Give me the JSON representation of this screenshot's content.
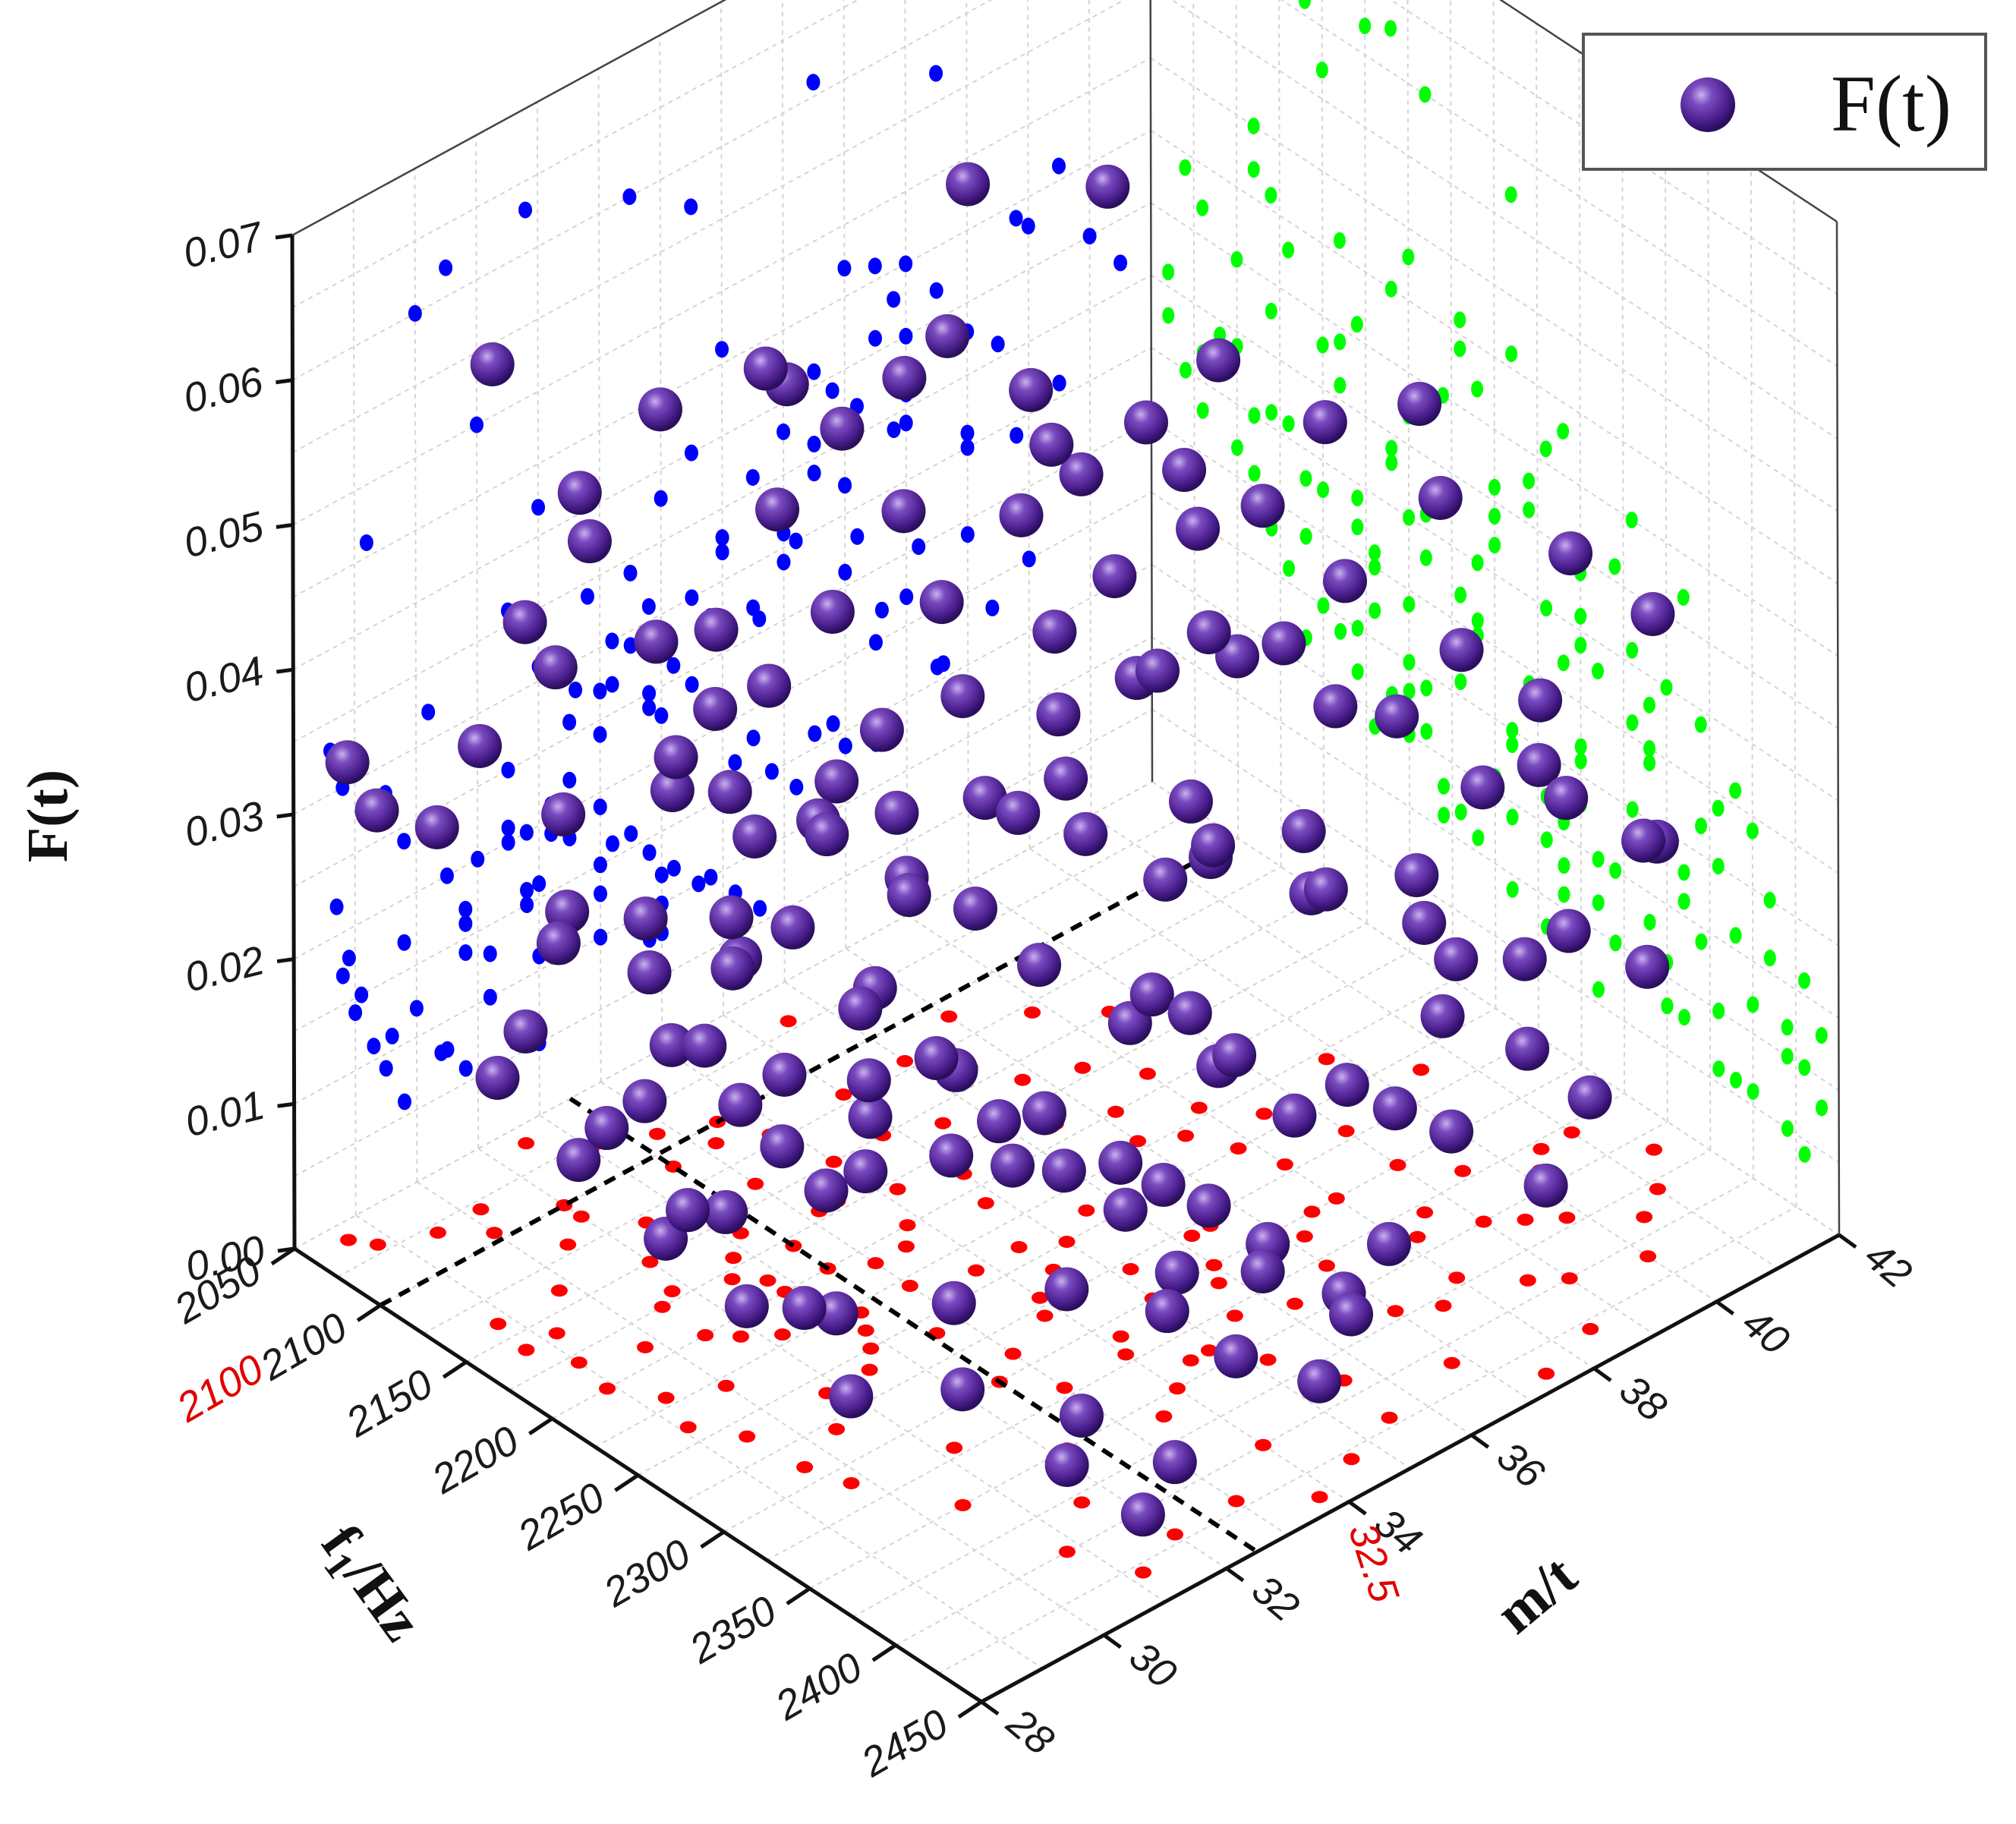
{
  "chart_data": {
    "type": "scatter",
    "subtype": "3d-scatter-with-wall-projections",
    "legend": {
      "position": "top-right",
      "entries": [
        {
          "label": "F(t)",
          "marker": "sphere",
          "color": "#5b2a9a"
        }
      ]
    },
    "axes": {
      "x": {
        "label_main": "f",
        "label_sub": "1",
        "label_unit": "/Hz",
        "range": [
          2050,
          2450
        ],
        "ticks": [
          "2050",
          "2100",
          "2150",
          "2200",
          "2250",
          "2300",
          "2350",
          "2400",
          "2450"
        ],
        "highlight": {
          "value": "2100",
          "color": "#e00000"
        }
      },
      "y": {
        "label": "m/t",
        "range": [
          28,
          42
        ],
        "ticks": [
          "28",
          "30",
          "32",
          "34",
          "36",
          "38",
          "40",
          "42"
        ],
        "highlight": {
          "value": "32.5",
          "color": "#e00000"
        }
      },
      "z": {
        "label": "F(t)",
        "range": [
          0,
          0.07
        ],
        "ticks": [
          "0.00",
          "0.01",
          "0.02",
          "0.03",
          "0.04",
          "0.05",
          "0.06",
          "0.07"
        ]
      }
    },
    "grid": true,
    "guides": [
      {
        "f1": 2100,
        "m": 32.5,
        "style": "dashed",
        "color": "#000000"
      }
    ],
    "projections": {
      "xz_wall": {
        "color": "#0000ff"
      },
      "yz_wall": {
        "color": "#00ff00"
      },
      "xy_floor": {
        "color": "#ff0000"
      }
    },
    "series": [
      {
        "name": "F(t)",
        "color": "#5b2a9a",
        "points": [
          [
            2095,
            30.0,
            0.06
          ],
          [
            2110,
            31.0,
            0.05
          ],
          [
            2160,
            29.2,
            0.046
          ],
          [
            2175,
            30.5,
            0.062
          ],
          [
            2190,
            31.8,
            0.063
          ],
          [
            2210,
            33.5,
            0.06
          ],
          [
            2260,
            34.5,
            0.057
          ],
          [
            2140,
            36.5,
            0.061
          ],
          [
            2150,
            38.5,
            0.057
          ],
          [
            2200,
            38.9,
            0.048
          ],
          [
            2230,
            37.5,
            0.046
          ],
          [
            2280,
            36.5,
            0.041
          ],
          [
            2120,
            35.0,
            0.046
          ],
          [
            2080,
            32.0,
            0.042
          ],
          [
            2100,
            33.5,
            0.034
          ],
          [
            2150,
            34.0,
            0.038
          ],
          [
            2250,
            35.0,
            0.032
          ],
          [
            2300,
            36.0,
            0.029
          ],
          [
            2340,
            34.5,
            0.024
          ],
          [
            2200,
            32.5,
            0.03
          ],
          [
            2230,
            33.0,
            0.027
          ],
          [
            2180,
            31.5,
            0.025
          ],
          [
            2260,
            31.5,
            0.02
          ],
          [
            2300,
            32.5,
            0.018
          ],
          [
            2360,
            33.5,
            0.016
          ],
          [
            2400,
            34.0,
            0.012
          ],
          [
            2420,
            33.0,
            0.01
          ],
          [
            2150,
            31.0,
            0.02
          ],
          [
            2120,
            30.5,
            0.023
          ],
          [
            2080,
            29.5,
            0.028
          ],
          [
            2060,
            28.6,
            0.033
          ],
          [
            2070,
            28.8,
            0.03
          ],
          [
            2140,
            29.8,
            0.024
          ],
          [
            2200,
            30.5,
            0.02
          ],
          [
            2260,
            30.8,
            0.014
          ],
          [
            2320,
            31.2,
            0.01
          ],
          [
            2380,
            31.6,
            0.006
          ],
          [
            2420,
            32.0,
            0.005
          ],
          [
            2110,
            32.5,
            0.026
          ],
          [
            2170,
            33.5,
            0.029
          ],
          [
            2240,
            34.5,
            0.03
          ],
          [
            2290,
            35.5,
            0.027
          ],
          [
            2330,
            37.0,
            0.026
          ],
          [
            2370,
            38.0,
            0.022
          ],
          [
            2250,
            36.5,
            0.036
          ],
          [
            2300,
            38.0,
            0.034
          ],
          [
            2350,
            39.0,
            0.03
          ],
          [
            2330,
            40.5,
            0.031
          ],
          [
            2370,
            39.8,
            0.029
          ],
          [
            2390,
            40.5,
            0.026
          ],
          [
            2400,
            39.0,
            0.024
          ],
          [
            2220,
            38.0,
            0.04
          ],
          [
            2270,
            39.0,
            0.038
          ],
          [
            2320,
            39.5,
            0.036
          ],
          [
            2160,
            35.5,
            0.036
          ],
          [
            2190,
            35.0,
            0.033
          ],
          [
            2210,
            36.0,
            0.031
          ],
          [
            2120,
            33.8,
            0.031
          ],
          [
            2090,
            32.8,
            0.034
          ],
          [
            2130,
            32.0,
            0.031
          ],
          [
            2100,
            31.0,
            0.027
          ],
          [
            2180,
            32.5,
            0.022
          ],
          [
            2210,
            33.0,
            0.019
          ],
          [
            2250,
            33.2,
            0.016
          ],
          [
            2280,
            33.8,
            0.014
          ],
          [
            2310,
            34.2,
            0.012
          ],
          [
            2340,
            34.8,
            0.01
          ],
          [
            2360,
            35.2,
            0.008
          ],
          [
            2390,
            35.6,
            0.006
          ],
          [
            2170,
            30.8,
            0.017
          ],
          [
            2220,
            31.2,
            0.013
          ],
          [
            2240,
            32.0,
            0.011
          ],
          [
            2200,
            31.8,
            0.015
          ],
          [
            2160,
            32.2,
            0.019
          ],
          [
            2130,
            31.5,
            0.021
          ],
          [
            2190,
            29.8,
            0.017
          ],
          [
            2230,
            30.0,
            0.012
          ],
          [
            2280,
            30.4,
            0.008
          ],
          [
            2310,
            29.8,
            0.006
          ],
          [
            2260,
            29.5,
            0.009
          ],
          [
            2220,
            29.3,
            0.011
          ],
          [
            2180,
            29.0,
            0.014
          ],
          [
            2140,
            28.8,
            0.017
          ],
          [
            2330,
            35.5,
            0.018
          ],
          [
            2360,
            36.5,
            0.016
          ],
          [
            2300,
            35.0,
            0.021
          ],
          [
            2270,
            34.0,
            0.023
          ],
          [
            2240,
            33.8,
            0.025
          ],
          [
            2280,
            36.2,
            0.03
          ],
          [
            2310,
            37.2,
            0.028
          ],
          [
            2340,
            38.2,
            0.025
          ],
          [
            2380,
            37.5,
            0.02
          ],
          [
            2410,
            36.8,
            0.016
          ],
          [
            2420,
            35.5,
            0.012
          ],
          [
            2150,
            34.8,
            0.028
          ],
          [
            2180,
            34.2,
            0.026
          ],
          [
            2120,
            36.0,
            0.038
          ],
          [
            2170,
            37.5,
            0.041
          ],
          [
            2200,
            37.2,
            0.037
          ],
          [
            2250,
            37.8,
            0.034
          ],
          [
            2290,
            40.0,
            0.043
          ],
          [
            2330,
            41.0,
            0.04
          ],
          [
            2360,
            41.5,
            0.037
          ],
          [
            2230,
            39.8,
            0.044
          ],
          [
            2260,
            40.5,
            0.046
          ],
          [
            2140,
            33.0,
            0.024
          ],
          [
            2100,
            34.5,
            0.04
          ],
          [
            2070,
            35.5,
            0.044
          ],
          [
            2060,
            31.5,
            0.036
          ],
          [
            2080,
            30.2,
            0.032
          ],
          [
            2160,
            28.7,
            0.022
          ],
          [
            2200,
            28.9,
            0.018
          ],
          [
            2240,
            29.1,
            0.015
          ],
          [
            2290,
            29.6,
            0.011
          ],
          [
            2350,
            30.5,
            0.008
          ],
          [
            2400,
            30.8,
            0.006
          ],
          [
            2430,
            31.2,
            0.004
          ],
          [
            2440,
            33.8,
            0.008
          ],
          [
            2430,
            34.6,
            0.01
          ],
          [
            2380,
            33.0,
            0.01
          ],
          [
            2350,
            32.2,
            0.011
          ],
          [
            2320,
            33.0,
            0.015
          ],
          [
            2290,
            32.0,
            0.016
          ],
          [
            2260,
            32.6,
            0.019
          ],
          [
            2230,
            32.2,
            0.021
          ],
          [
            2200,
            33.8,
            0.024
          ],
          [
            2170,
            33.2,
            0.027
          ],
          [
            2140,
            32.6,
            0.028
          ],
          [
            2110,
            33.2,
            0.03
          ],
          [
            2210,
            34.8,
            0.028
          ],
          [
            2240,
            35.6,
            0.026
          ],
          [
            2270,
            36.8,
            0.024
          ],
          [
            2300,
            37.6,
            0.022
          ],
          [
            2330,
            38.6,
            0.02
          ],
          [
            2360,
            39.4,
            0.018
          ],
          [
            2390,
            38.6,
            0.016
          ],
          [
            2370,
            37.0,
            0.014
          ],
          [
            2340,
            36.2,
            0.013
          ],
          [
            2310,
            35.8,
            0.015
          ],
          [
            2280,
            35.2,
            0.017
          ],
          [
            2190,
            36.5,
            0.034
          ],
          [
            2220,
            37.0,
            0.032
          ],
          [
            2160,
            36.8,
            0.039
          ],
          [
            2130,
            37.8,
            0.043
          ],
          [
            2110,
            37.0,
            0.047
          ],
          [
            2190,
            38.0,
            0.045
          ],
          [
            2240,
            38.5,
            0.042
          ],
          [
            2270,
            38.0,
            0.036
          ],
          [
            2300,
            39.0,
            0.031
          ],
          [
            2340,
            40.2,
            0.028
          ],
          [
            2380,
            41.0,
            0.024
          ],
          [
            2410,
            40.0,
            0.02
          ],
          [
            2430,
            38.5,
            0.016
          ],
          [
            2440,
            37.5,
            0.013
          ],
          [
            2250,
            31.8,
            0.016
          ],
          [
            2210,
            30.8,
            0.016
          ],
          [
            2170,
            31.8,
            0.02
          ],
          [
            2290,
            33.0,
            0.013
          ],
          [
            2320,
            34.0,
            0.01
          ],
          [
            2350,
            34.0,
            0.008
          ]
        ]
      }
    ]
  }
}
